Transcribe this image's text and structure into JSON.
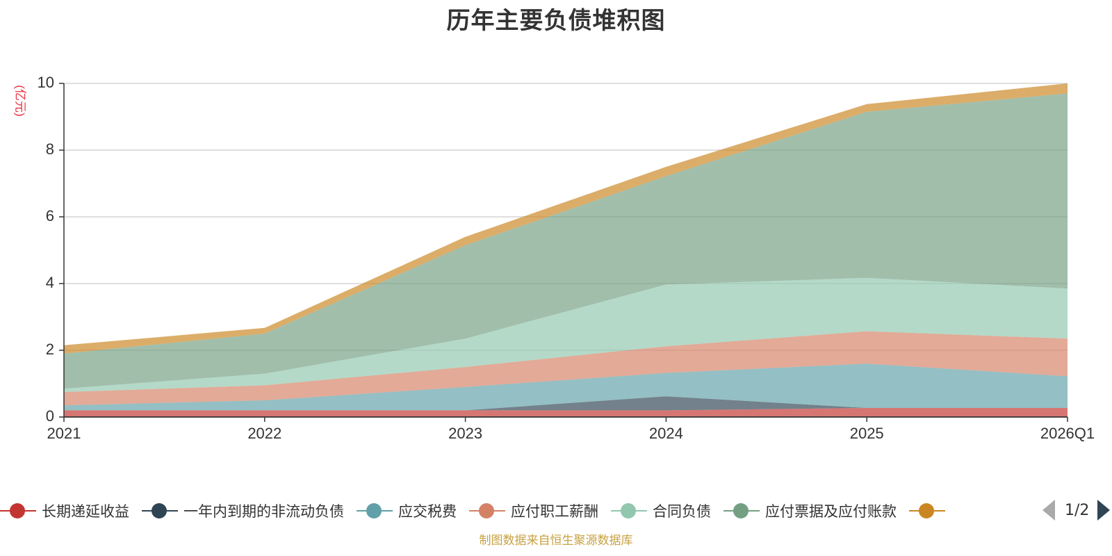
{
  "chart_data": {
    "type": "area",
    "stacked": true,
    "title": "历年主要负债堆积图",
    "ylabel": "(亿元)",
    "xlabel": "",
    "categories": [
      "2021",
      "2022",
      "2023",
      "2024",
      "2025",
      "2026Q1"
    ],
    "ylim": [
      0,
      10
    ],
    "yticks": [
      0,
      2,
      4,
      6,
      8,
      10
    ],
    "grid": true,
    "series": [
      {
        "name": "长期递延收益",
        "color": "#c23531",
        "values": [
          0.2,
          0.2,
          0.2,
          0.2,
          0.27,
          0.27
        ]
      },
      {
        "name": "一年内到期的非流动负债",
        "color": "#2f4554",
        "values": [
          0.0,
          0.0,
          0.0,
          0.42,
          0.0,
          0.0
        ]
      },
      {
        "name": "应交税费",
        "color": "#61a0a8",
        "values": [
          0.15,
          0.3,
          0.7,
          0.7,
          1.33,
          0.95
        ]
      },
      {
        "name": "应付职工薪酬",
        "color": "#d48265",
        "values": [
          0.4,
          0.45,
          0.6,
          0.8,
          0.97,
          1.13
        ]
      },
      {
        "name": "合同负债",
        "color": "#91c7ae",
        "values": [
          0.1,
          0.35,
          0.85,
          1.85,
          1.6,
          1.5
        ]
      },
      {
        "name": "应付票据及应付账款",
        "color": "#749f83",
        "values": [
          1.05,
          1.2,
          2.8,
          3.25,
          4.98,
          5.85
        ]
      },
      {
        "name": "",
        "color": "#ca8622",
        "values": [
          0.25,
          0.17,
          0.25,
          0.28,
          0.23,
          0.3
        ]
      }
    ]
  },
  "legend": {
    "page_indicator": "1/2"
  },
  "footer": {
    "source": "制图数据来自恒生聚源数据库"
  }
}
